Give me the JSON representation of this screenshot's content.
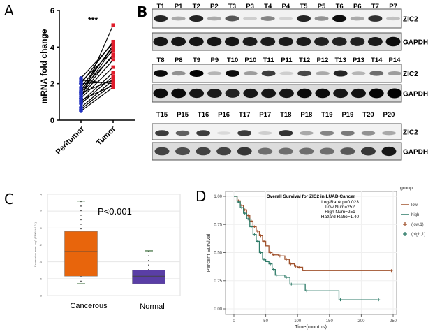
{
  "panels": {
    "a": "A",
    "b": "B",
    "c": "C",
    "d": "D"
  },
  "chart_data": [
    {
      "panel": "A",
      "type": "scatter",
      "ylabel": "mRNA fold change",
      "categories": [
        "Peritumor",
        "Tumor"
      ],
      "ylim": [
        0,
        6
      ],
      "yticks": [
        "0",
        "2",
        "4",
        "6"
      ],
      "annotation": "***",
      "colors": {
        "Peritumor": "#1f2fbf",
        "Tumor": "#e01d2b"
      },
      "pairs": [
        [
          0.5,
          1.8
        ],
        [
          0.6,
          2.0
        ],
        [
          0.7,
          2.2
        ],
        [
          0.9,
          2.4
        ],
        [
          1.0,
          2.6
        ],
        [
          1.1,
          1.9
        ],
        [
          1.2,
          2.9
        ],
        [
          1.3,
          3.3
        ],
        [
          1.4,
          3.6
        ],
        [
          1.5,
          3.9
        ],
        [
          1.5,
          2.2
        ],
        [
          1.6,
          4.1
        ],
        [
          1.7,
          3.5
        ],
        [
          1.8,
          4.0
        ],
        [
          2.0,
          4.3
        ],
        [
          2.0,
          2.1
        ],
        [
          2.1,
          3.8
        ],
        [
          2.2,
          2.0
        ],
        [
          2.3,
          4.2
        ],
        [
          1.2,
          5.2
        ]
      ]
    },
    {
      "panel": "C",
      "type": "box",
      "ylabel": "Expression level: log2 (FPKM+0.01)",
      "ylim": [
        -8,
        4
      ],
      "yticks": [
        "4",
        "2",
        "0",
        "-2",
        "-4",
        "-6",
        "-8"
      ],
      "annotation": "P<0.001",
      "boxes": [
        {
          "name": "Cancerous",
          "min": -6.6,
          "q1": -5.7,
          "median": -2.8,
          "q3": -0.4,
          "max": 3.2,
          "color": "#e8650c"
        },
        {
          "name": "Normal",
          "min": -6.6,
          "q1": -6.6,
          "median": -5.7,
          "q3": -5.0,
          "max": -2.7,
          "color": "#5a3ea6"
        }
      ]
    },
    {
      "panel": "D",
      "type": "line",
      "title": "Overall Survival for ZIC2 in LUAD Cancer",
      "stats": [
        "Log-Rank p=0.023",
        "Low Num=252",
        "High Num=251",
        "Hazard Ratio=1.40"
      ],
      "xlabel": "Time(months)",
      "ylabel": "Percent Survival",
      "xlim": [
        0,
        250
      ],
      "ylim": [
        0,
        1
      ],
      "xticks": [
        "0",
        "50",
        "100",
        "150",
        "200",
        "250"
      ],
      "yticks": [
        "0.00",
        "0.25",
        "0.50",
        "0.75",
        "1.00"
      ],
      "legend": {
        "title": "group",
        "items": [
          "low",
          "high",
          "(low,1)",
          "(high,1)"
        ],
        "placement": "right"
      },
      "series": [
        {
          "name": "low",
          "color": "#a0522d",
          "points": [
            [
              0,
              1
            ],
            [
              5,
              0.96
            ],
            [
              10,
              0.92
            ],
            [
              15,
              0.88
            ],
            [
              20,
              0.83
            ],
            [
              25,
              0.78
            ],
            [
              30,
              0.73
            ],
            [
              35,
              0.69
            ],
            [
              40,
              0.65
            ],
            [
              45,
              0.6
            ],
            [
              50,
              0.56
            ],
            [
              55,
              0.5
            ],
            [
              60,
              0.48
            ],
            [
              70,
              0.47
            ],
            [
              80,
              0.44
            ],
            [
              87,
              0.4
            ],
            [
              95,
              0.38
            ],
            [
              100,
              0.37
            ],
            [
              108,
              0.34
            ],
            [
              245,
              0.34
            ]
          ]
        },
        {
          "name": "high",
          "color": "#2e7b68",
          "points": [
            [
              0,
              1
            ],
            [
              5,
              0.95
            ],
            [
              10,
              0.9
            ],
            [
              15,
              0.85
            ],
            [
              20,
              0.8
            ],
            [
              25,
              0.73
            ],
            [
              30,
              0.66
            ],
            [
              35,
              0.6
            ],
            [
              40,
              0.5
            ],
            [
              45,
              0.44
            ],
            [
              50,
              0.42
            ],
            [
              55,
              0.4
            ],
            [
              60,
              0.35
            ],
            [
              65,
              0.3
            ],
            [
              80,
              0.28
            ],
            [
              88,
              0.22
            ],
            [
              112,
              0.16
            ],
            [
              165,
              0.08
            ],
            [
              225,
              0.08
            ]
          ]
        }
      ]
    }
  ],
  "blot": {
    "rows": [
      {
        "lanes": [
          "T1",
          "P1",
          "T2",
          "P2",
          "T3",
          "P3",
          "T4",
          "P4",
          "T5",
          "P5",
          "T6",
          "P6",
          "T7",
          "P7"
        ],
        "zic2": [
          0.85,
          0.3,
          0.85,
          0.3,
          0.65,
          0.15,
          0.45,
          0.12,
          0.85,
          0.4,
          0.95,
          0.3,
          0.8,
          0.2
        ],
        "gapdh": [
          0.9,
          0.9,
          0.9,
          0.9,
          0.9,
          0.88,
          0.88,
          0.88,
          0.88,
          0.85,
          0.85,
          0.85,
          0.88,
          0.95
        ]
      },
      {
        "lanes": [
          "T8",
          "P8",
          "T9",
          "P9",
          "T10",
          "P10",
          "T11",
          "P11",
          "T12",
          "P12",
          "T13",
          "P13",
          "T14",
          "P14"
        ],
        "zic2": [
          0.95,
          0.4,
          1.0,
          0.25,
          0.95,
          0.35,
          0.75,
          0.15,
          0.7,
          0.3,
          0.85,
          0.25,
          0.55,
          0.35
        ],
        "gapdh": [
          0.95,
          0.95,
          0.9,
          0.88,
          0.85,
          0.9,
          0.9,
          0.9,
          0.95,
          0.95,
          0.9,
          0.92,
          0.98,
          1.0
        ]
      },
      {
        "lanes": [
          "T15",
          "P15",
          "T16",
          "P16",
          "T17",
          "P17",
          "T18",
          "P18",
          "T19",
          "P19",
          "T20",
          "P20"
        ],
        "zic2": [
          0.75,
          0.6,
          0.75,
          0.1,
          0.75,
          0.15,
          0.8,
          0.3,
          0.45,
          0.5,
          0.4,
          0.3
        ],
        "gapdh": [
          0.7,
          0.65,
          0.7,
          0.7,
          0.75,
          0.5,
          0.5,
          0.5,
          0.5,
          0.6,
          0.75,
          0.9
        ]
      }
    ],
    "targets": [
      "ZIC2",
      "GAPDH"
    ]
  }
}
